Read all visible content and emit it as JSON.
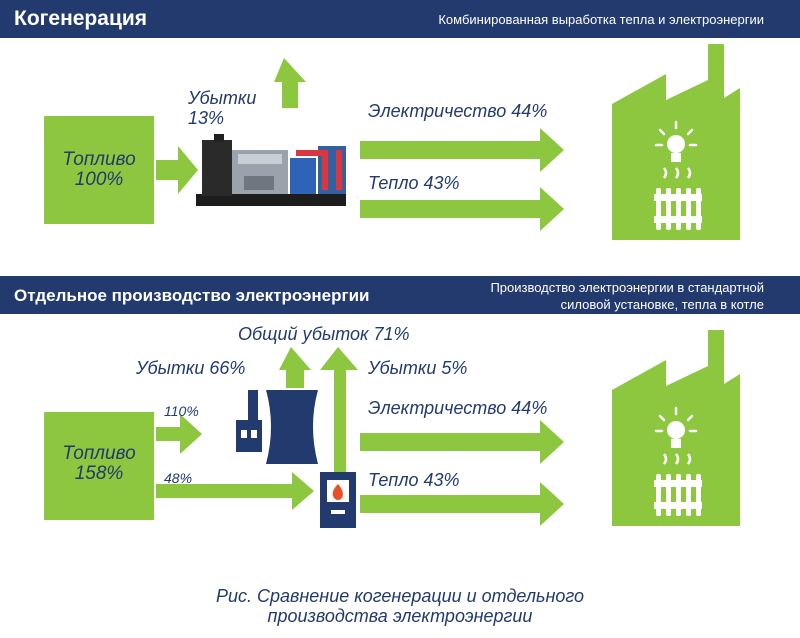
{
  "colors": {
    "green": "#8dc63f",
    "navy": "#233a6e",
    "white": "#ffffff",
    "fire": "#e8502a"
  },
  "top": {
    "title": "Когенерация",
    "subtitle": "Комбинированная выработка тепла и электроэнергии",
    "fuel_label": "Топливо",
    "fuel_value": "100%",
    "loss_label": "Убытки",
    "loss_value": "13%",
    "electricity": "Электричество 44%",
    "heat": "Тепло 43%"
  },
  "bottom": {
    "title": "Отдельное производство электроэнергии",
    "subtitle_line1": "Производство электроэнергии в стандартной",
    "subtitle_line2": "силовой установке, тепла в котле",
    "fuel_label": "Топливо",
    "fuel_value": "158%",
    "total_loss": "Общий убыток 71%",
    "loss_plant": "Убытки 66%",
    "loss_boiler": "Убытки 5%",
    "plant_input": "110%",
    "boiler_input": "48%",
    "electricity": "Электричество 44%",
    "heat": "Тепло 43%"
  },
  "caption_line1": "Рис. Сравнение когенерации и отдельного",
  "caption_line2": "производства электроэнергии",
  "icons": [
    "generator-icon",
    "factory-icon",
    "lightbulb-icon",
    "radiator-icon",
    "power-plant-icon",
    "boiler-icon"
  ]
}
